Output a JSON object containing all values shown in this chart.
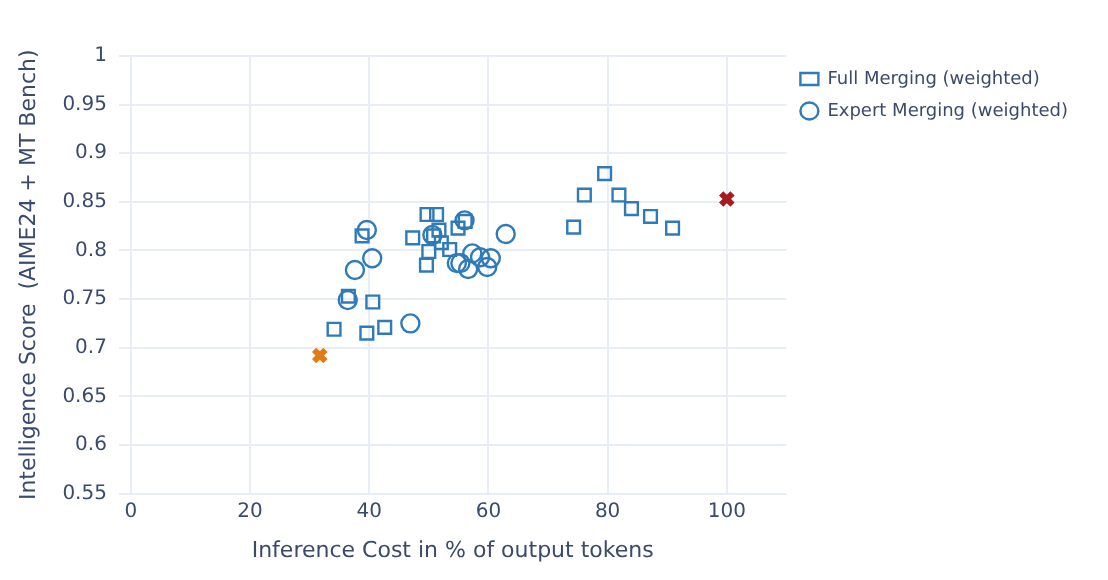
{
  "chart_data": {
    "type": "scatter",
    "xlabel": "Inference Cost in % of output tokens",
    "ylabel": "Intelligence Score  (AIME24 + MT Bench)",
    "xlim": [
      -2,
      110
    ],
    "xticks": [
      0,
      20,
      40,
      60,
      80,
      100
    ],
    "ylim": [
      0.55,
      1
    ],
    "yticks": [
      0.55,
      0.6,
      0.65,
      0.7,
      0.75,
      0.8,
      0.85,
      0.9,
      0.95,
      1
    ],
    "grid": true,
    "legend": "top right",
    "series": [
      {
        "color": "#a31c22",
        "marker": "cross",
        "x": [
          100
        ],
        "values": [
          0.853
        ]
      },
      {
        "color": "#e07b16",
        "marker": "cross",
        "x": [
          31.7
        ],
        "values": [
          0.692
        ]
      },
      {
        "name": "Full Merging (weighted)",
        "color": "#2f7ab9",
        "marker": "square",
        "x": [
          36.5,
          34.1,
          39.6,
          40.6,
          42.6,
          38.8,
          47.3,
          49.7,
          51.3,
          49.6,
          50.0,
          50.8,
          51.7,
          52.1,
          53.5,
          54.9,
          56.1,
          74.3,
          76.1,
          79.5,
          81.9,
          84.0,
          87.2,
          90.9
        ],
        "values": [
          0.753,
          0.719,
          0.715,
          0.747,
          0.721,
          0.815,
          0.813,
          0.837,
          0.837,
          0.785,
          0.799,
          0.815,
          0.821,
          0.808,
          0.801,
          0.823,
          0.83,
          0.824,
          0.857,
          0.879,
          0.857,
          0.843,
          0.835,
          0.823
        ]
      },
      {
        "name": "Expert Merging (weighted)",
        "color": "#2f7ab9",
        "marker": "circle",
        "x": [
          39.6,
          37.6,
          40.5,
          36.4,
          46.9,
          50.6,
          54.7,
          55.3,
          56.6,
          56.0,
          57.3,
          58.6,
          59.8,
          60.4,
          62.9
        ],
        "values": [
          0.821,
          0.78,
          0.792,
          0.749,
          0.725,
          0.816,
          0.787,
          0.787,
          0.781,
          0.831,
          0.797,
          0.793,
          0.783,
          0.792,
          0.817
        ]
      }
    ]
  }
}
